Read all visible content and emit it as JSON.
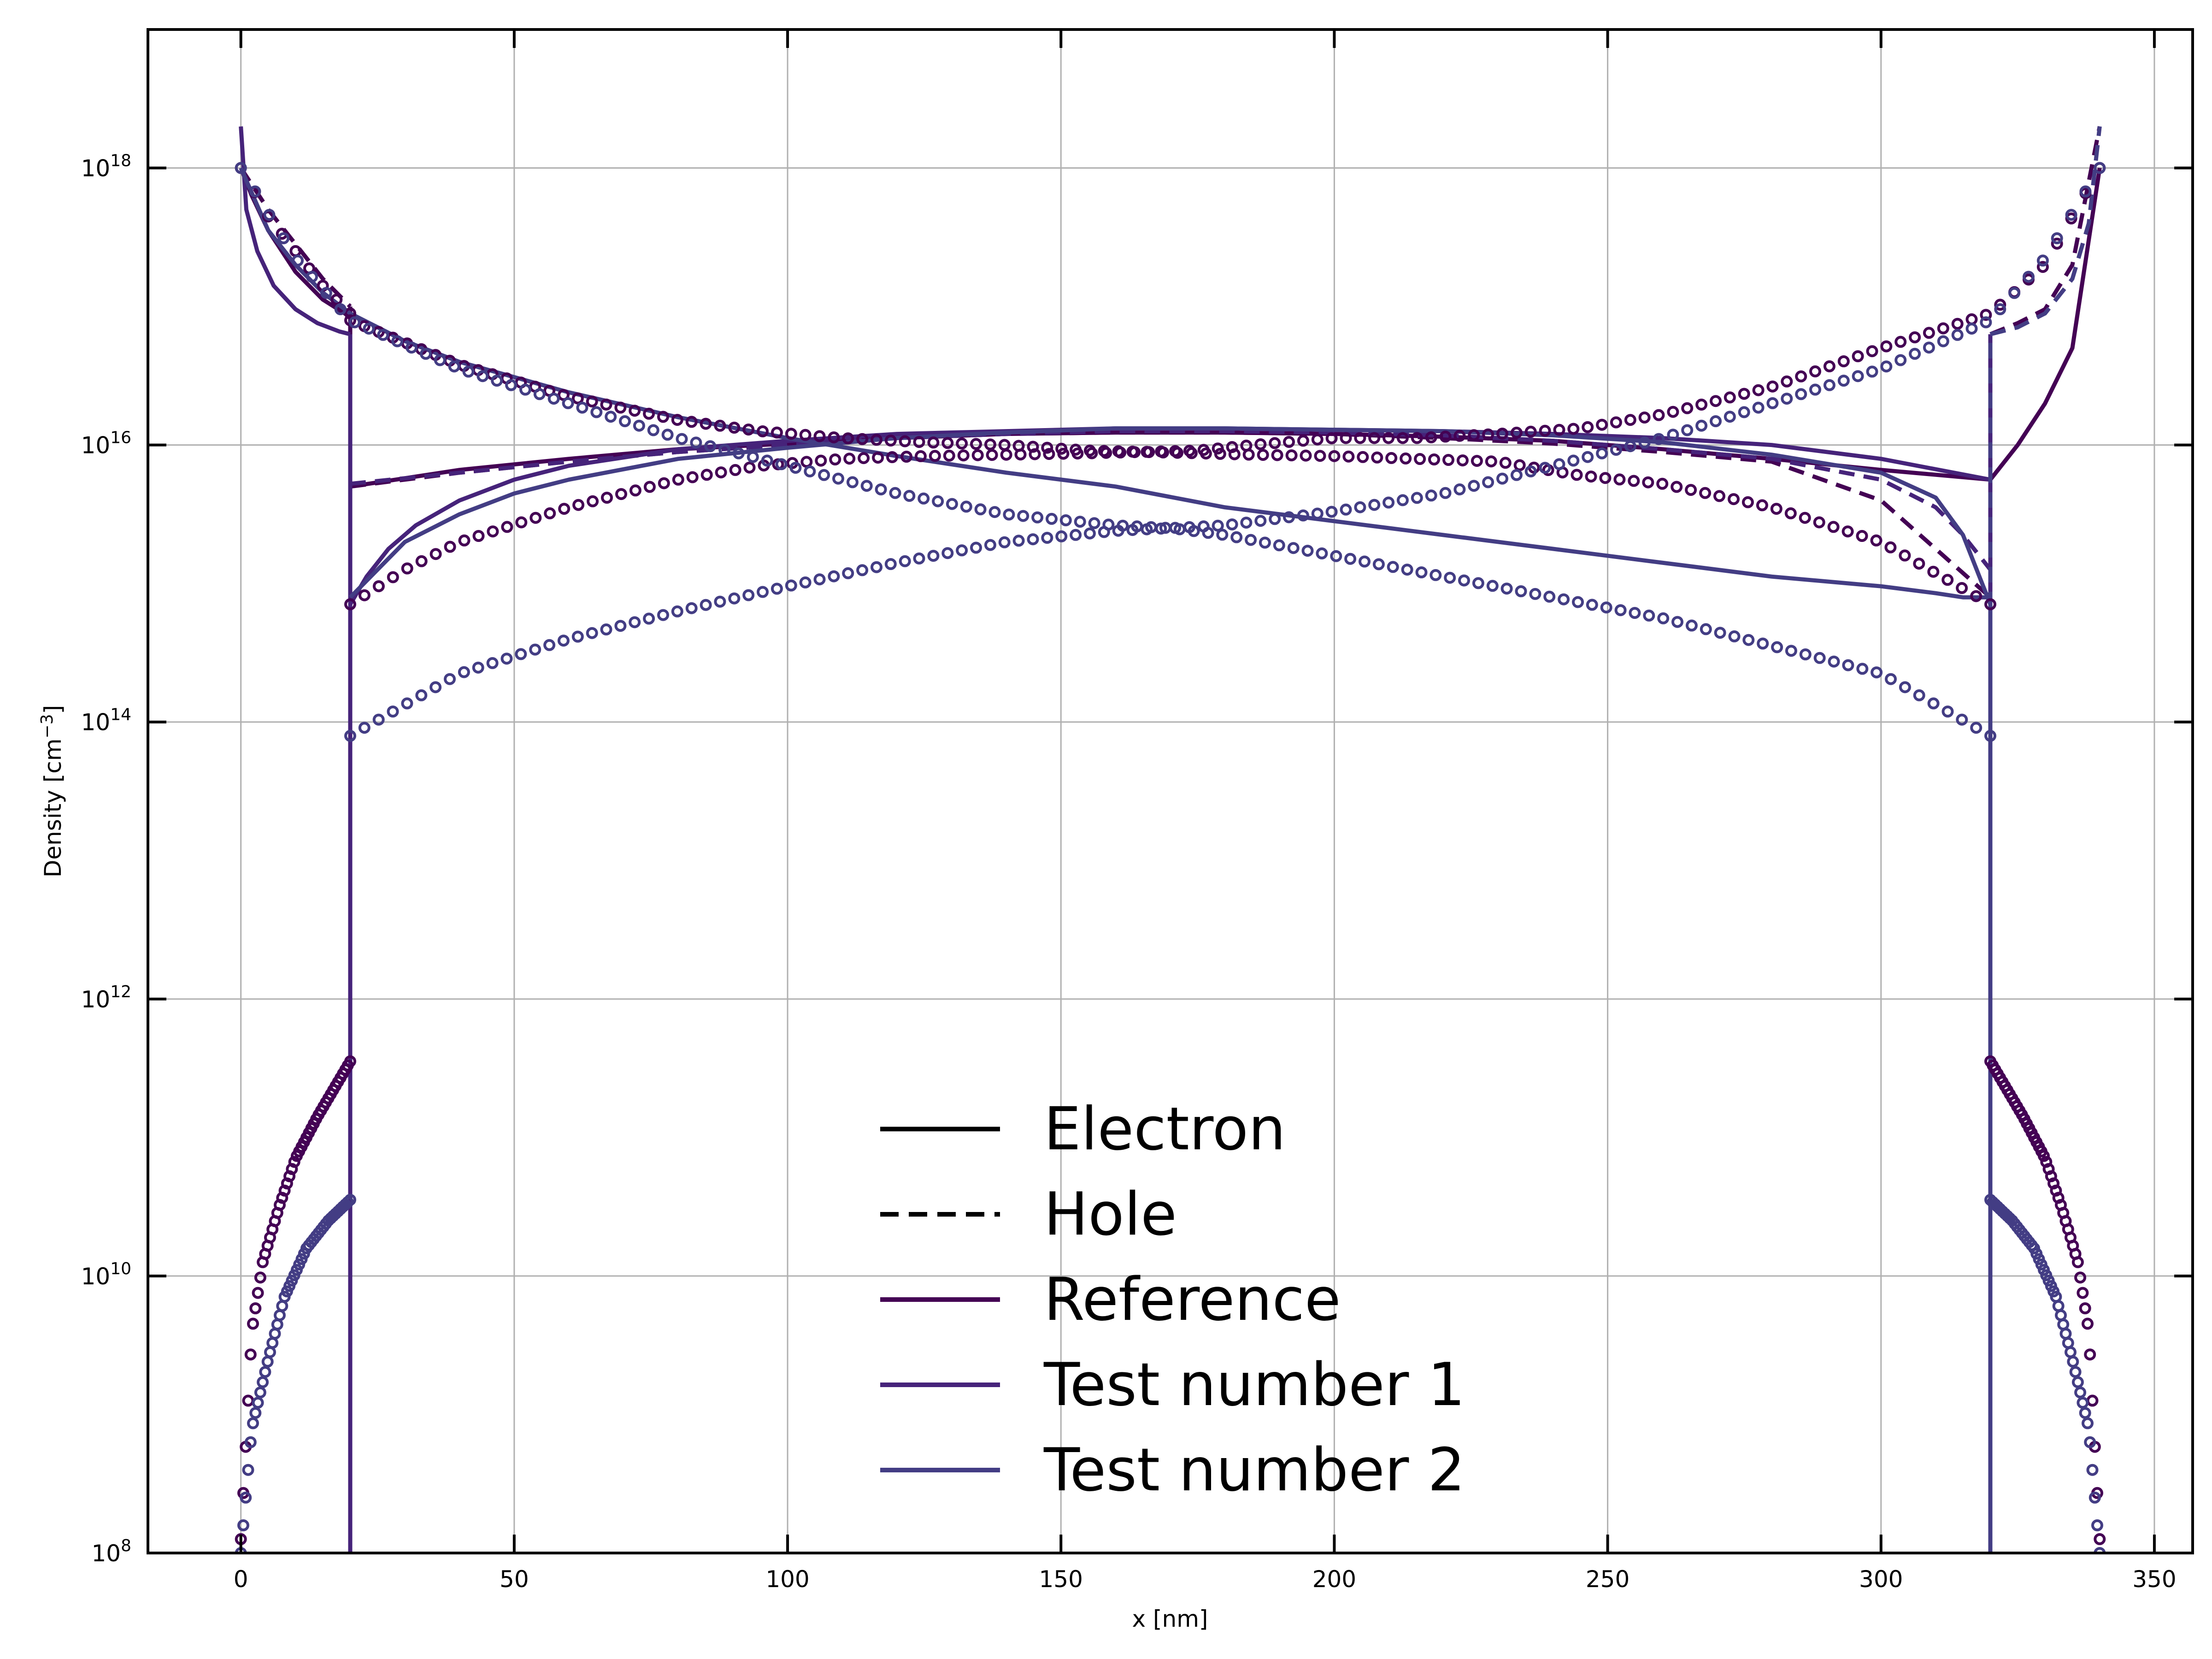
{
  "chart_data": {
    "type": "line",
    "title": "",
    "xlabel": "x [nm]",
    "ylabel": "Density [cm",
    "ylabel_sup": "−3",
    "ylabel_end": "]",
    "xlim": [
      -17,
      357
    ],
    "ylim_log10": [
      8,
      19
    ],
    "yscale": "log",
    "grid": true,
    "x_ticks": [
      0,
      50,
      100,
      150,
      200,
      250,
      300,
      350
    ],
    "x_tick_labels": [
      "0",
      "50",
      "100",
      "150",
      "200",
      "250",
      "300",
      "350"
    ],
    "y_ticks_log10": [
      8,
      10,
      12,
      14,
      16,
      18
    ],
    "y_tick_base": "10",
    "y_tick_exponents": [
      "8",
      "10",
      "12",
      "14",
      "16",
      "18"
    ],
    "legend": {
      "placement": "lower-center",
      "entries": [
        {
          "label": "Electron",
          "color": "#000000",
          "dash": "solid"
        },
        {
          "label": "Hole",
          "color": "#000000",
          "dash": "dashed"
        },
        {
          "label": "Reference",
          "color": "#440154",
          "dash": "solid"
        },
        {
          "label": "Test number 1",
          "color": "#46237a",
          "dash": "solid"
        },
        {
          "label": "Test number 2",
          "color": "#433d84",
          "dash": "solid"
        }
      ]
    },
    "colors": {
      "Reference": "#440154",
      "Test number 1": "#46237a",
      "Test number 2": "#433d84"
    },
    "series": [
      {
        "group": "Reference",
        "carrier": "Electron",
        "style": "solid",
        "segments": [
          {
            "x": [
              0,
              2,
              5,
              10,
              15,
              19,
              20
            ],
            "log10": [
              18.0,
              17.8,
              17.55,
              17.25,
              17.05,
              16.95,
              16.92
            ]
          },
          {
            "x": [
              20,
              20
            ],
            "log10": [
              16.92,
              8.0
            ]
          },
          {
            "x": [
              320,
              320
            ],
            "log10": [
              8.0,
              15.75
            ]
          },
          {
            "x": [
              320,
              325,
              330,
              335,
              340
            ],
            "log10": [
              15.75,
              16.0,
              16.3,
              16.7,
              18.0
            ]
          }
        ]
      },
      {
        "group": "Reference",
        "carrier": "Electron",
        "style": "solid",
        "segments": [
          {
            "x": [
              20,
              40,
              60,
              80,
              100,
              120,
              140,
              160,
              180,
              200,
              220,
              240,
              260,
              280,
              300,
              320
            ],
            "log10": [
              15.7,
              15.82,
              15.9,
              15.97,
              16.01,
              16.05,
              16.08,
              16.09,
              16.09,
              16.08,
              16.06,
              16.03,
              15.97,
              15.9,
              15.82,
              15.75
            ]
          }
        ]
      },
      {
        "group": "Reference",
        "carrier": "Hole",
        "style": "dashed",
        "segments": [
          {
            "x": [
              0,
              5,
              10,
              15,
              20
            ],
            "log10": [
              18.0,
              17.7,
              17.45,
              17.2,
              17.0
            ]
          },
          {
            "x": [
              20,
              20
            ],
            "log10": [
              17.0,
              8.0
            ]
          },
          {
            "x": [
              320,
              320
            ],
            "log10": [
              8.0,
              16.8
            ]
          },
          {
            "x": [
              320,
              325,
              330,
              335,
              340
            ],
            "log10": [
              16.8,
              16.88,
              16.98,
              17.3,
              18.3
            ]
          }
        ]
      },
      {
        "group": "Reference",
        "carrier": "Hole",
        "style": "dashed",
        "segments": [
          {
            "x": [
              20,
              40,
              60,
              80,
              100,
              120,
              140,
              160,
              180,
              200,
              220,
              240,
              260,
              280,
              300,
              320
            ],
            "log10": [
              15.7,
              15.8,
              15.88,
              15.95,
              16.0,
              16.05,
              16.08,
              16.09,
              16.09,
              16.08,
              16.05,
              16.01,
              15.95,
              15.88,
              15.6,
              14.9
            ]
          }
        ]
      },
      {
        "group": "Test number 1",
        "carrier": "Electron",
        "style": "solid",
        "segments": [
          {
            "x": [
              0,
              1,
              3,
              6,
              10,
              14,
              18,
              20
            ],
            "log10": [
              18.3,
              17.7,
              17.4,
              17.15,
              16.98,
              16.88,
              16.82,
              16.8
            ]
          },
          {
            "x": [
              20,
              20
            ],
            "log10": [
              16.8,
              8.0
            ]
          },
          {
            "x": [
              320,
              320
            ],
            "log10": [
              8.0,
              15.9
            ]
          }
        ]
      },
      {
        "group": "Test number 1",
        "carrier": "Electron",
        "style": "solid",
        "segments": [
          {
            "x": [
              20,
              23,
              27,
              32,
              40,
              50,
              60,
              80,
              100,
              120,
              140,
              160,
              180,
              200,
              220,
              240,
              260,
              280,
              300,
              320
            ],
            "log10": [
              14.85,
              15.05,
              15.25,
              15.42,
              15.6,
              15.75,
              15.85,
              15.97,
              16.03,
              16.08,
              16.1,
              16.12,
              16.12,
              16.11,
              16.1,
              16.08,
              16.05,
              16.0,
              15.9,
              15.75
            ]
          }
        ]
      },
      {
        "group": "Test number 1",
        "carrier": "Hole",
        "style": "dashed",
        "segments": [
          {
            "x": [
              20,
              20
            ],
            "log10": [
              8.0,
              15.72
            ]
          },
          {
            "x": [
              20,
              40,
              60,
              80,
              100,
              120,
              140,
              160,
              180,
              200,
              220,
              240,
              260,
              280,
              300,
              310,
              315,
              320
            ],
            "log10": [
              15.72,
              15.8,
              15.88,
              15.95,
              16.0,
              16.05,
              16.08,
              16.1,
              16.1,
              16.09,
              16.07,
              16.03,
              15.97,
              15.9,
              15.75,
              15.55,
              15.35,
              15.1
            ]
          },
          {
            "x": [
              320,
              320
            ],
            "log10": [
              15.1,
              16.8
            ]
          }
        ]
      },
      {
        "group": "Test number 2",
        "carrier": "Electron",
        "style": "solid",
        "segments": [
          {
            "x": [
              0,
              5,
              10,
              15,
              20,
              30,
              40,
              60,
              80,
              100,
              120,
              140,
              160,
              180,
              200,
              220,
              240,
              260,
              280,
              300,
              310,
              315,
              320
            ],
            "log10": [
              18.0,
              17.55,
              17.3,
              17.1,
              16.95,
              16.75,
              16.6,
              16.38,
              16.2,
              16.05,
              15.92,
              15.8,
              15.7,
              15.55,
              15.45,
              15.35,
              15.25,
              15.15,
              15.05,
              14.98,
              14.93,
              14.9,
              14.9
            ]
          },
          {
            "x": [
              320,
              320
            ],
            "log10": [
              14.9,
              8.0
            ]
          }
        ]
      },
      {
        "group": "Test number 2",
        "carrier": "Electron",
        "style": "solid",
        "segments": [
          {
            "x": [
              20,
              25,
              30,
              40,
              50,
              60,
              80,
              100,
              120,
              140,
              160,
              180,
              200,
              220,
              240,
              260,
              280,
              300,
              310,
              315,
              320
            ],
            "log10": [
              14.9,
              15.1,
              15.3,
              15.5,
              15.65,
              15.75,
              15.9,
              15.98,
              16.05,
              16.09,
              16.12,
              16.12,
              16.11,
              16.1,
              16.07,
              16.02,
              15.93,
              15.8,
              15.62,
              15.35,
              14.85
            ]
          }
        ]
      },
      {
        "group": "Test number 2",
        "carrier": "Hole",
        "style": "dashed",
        "segments": [
          {
            "x": [
              320,
              320
            ],
            "log10": [
              8.0,
              16.8
            ]
          },
          {
            "x": [
              320,
              325,
              330,
              335,
              338,
              340
            ],
            "log10": [
              16.8,
              16.85,
              16.95,
              17.2,
              17.6,
              18.3
            ]
          }
        ]
      }
    ],
    "marker_series": [
      {
        "group": "Reference",
        "carrier": "Electron",
        "outer": {
          "x": [
            0,
            5,
            10,
            15,
            20
          ],
          "log10": [
            18.0,
            17.65,
            17.4,
            17.15,
            16.95
          ]
        },
        "inner": {
          "x": [
            20,
            30,
            40,
            60,
            80,
            95,
            110,
            125,
            140,
            155,
            165,
            175,
            185,
            200,
            215,
            230,
            245,
            260,
            280,
            300,
            320
          ],
          "log10": [
            14.85,
            15.1,
            15.3,
            15.55,
            15.75,
            15.85,
            15.9,
            15.92,
            15.93,
            15.94,
            15.95,
            15.94,
            15.93,
            15.92,
            15.9,
            15.88,
            15.78,
            15.72,
            15.55,
            15.3,
            14.85
          ]
        },
        "upper": {
          "x": [
            20,
            40,
            60,
            80,
            95,
            110,
            125,
            140,
            155,
            165,
            175,
            185,
            200,
            215,
            230,
            245,
            260,
            280,
            300,
            320,
            330,
            340
          ],
          "log10": [
            16.9,
            16.58,
            16.35,
            16.18,
            16.1,
            16.05,
            16.02,
            16.0,
            15.96,
            15.95,
            15.96,
            16.0,
            16.05,
            16.05,
            16.08,
            16.12,
            16.22,
            16.42,
            16.7,
            16.95,
            17.3,
            18.0
          ]
        },
        "bottom_left": {
          "x": [
            0,
            2,
            4,
            7,
            10,
            14,
            17,
            20
          ],
          "log10": [
            8.1,
            9.6,
            10.1,
            10.5,
            10.85,
            11.15,
            11.35,
            11.55
          ]
        },
        "bottom_right": {
          "x": [
            320,
            323,
            326,
            330,
            333,
            336,
            338,
            340
          ],
          "log10": [
            11.55,
            11.35,
            11.15,
            10.85,
            10.5,
            10.1,
            9.6,
            8.1
          ]
        }
      },
      {
        "group": "Test number 2",
        "carrier": "Hole",
        "upper": {
          "x": [
            0,
            10,
            20,
            40,
            60,
            80,
            100,
            120,
            140,
            160,
            170,
            180,
            200,
            220,
            240,
            260,
            280,
            300,
            320
          ],
          "log10": [
            18.0,
            17.35,
            16.9,
            16.55,
            16.3,
            16.05,
            15.85,
            15.65,
            15.5,
            15.42,
            15.4,
            15.35,
            15.2,
            15.05,
            14.9,
            14.75,
            14.55,
            14.35,
            13.9
          ]
        },
        "lower": {
          "x": [
            20,
            40,
            60,
            80,
            100,
            120,
            140,
            160,
            170,
            180,
            200,
            220,
            240,
            260,
            280,
            300,
            320,
            330,
            340
          ],
          "log10": [
            13.9,
            14.35,
            14.6,
            14.8,
            14.98,
            15.15,
            15.3,
            15.38,
            15.4,
            15.42,
            15.52,
            15.65,
            15.85,
            16.05,
            16.3,
            16.55,
            16.9,
            17.35,
            18.0
          ]
        },
        "bottom_left": {
          "x": [
            0,
            2,
            5,
            8,
            12,
            16,
            20
          ],
          "log10": [
            8.0,
            8.9,
            9.4,
            9.85,
            10.2,
            10.4,
            10.55
          ]
        },
        "bottom_right": {
          "x": [
            320,
            324,
            328,
            332,
            335,
            338,
            340
          ],
          "log10": [
            10.55,
            10.4,
            10.2,
            9.85,
            9.4,
            8.9,
            8.0
          ]
        }
      }
    ]
  }
}
